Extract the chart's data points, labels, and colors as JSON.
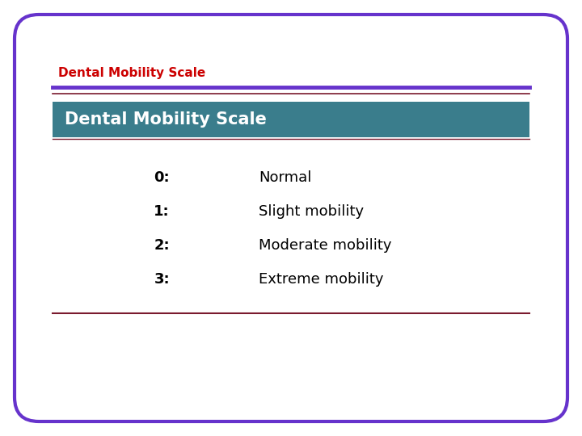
{
  "title_red": "Dental Mobility Scale",
  "header_text": "Dental Mobility Scale",
  "header_bg_color": "#3a7d8c",
  "header_text_color": "#ffffff",
  "items": [
    {
      "grade": "0:",
      "description": "Normal"
    },
    {
      "grade": "1:",
      "description": "Slight mobility"
    },
    {
      "grade": "2:",
      "description": "Moderate mobility"
    },
    {
      "grade": "3:",
      "description": "Extreme mobility"
    }
  ],
  "outer_border_color": "#6633cc",
  "top_line_purple_color": "#6633cc",
  "top_line_dark_red_color": "#7a1a2e",
  "bottom_line_color": "#7a1a2e",
  "title_color": "#cc0000",
  "background_color": "#ffffff",
  "title_fontsize": 11,
  "header_fontsize": 15,
  "item_fontsize": 13
}
